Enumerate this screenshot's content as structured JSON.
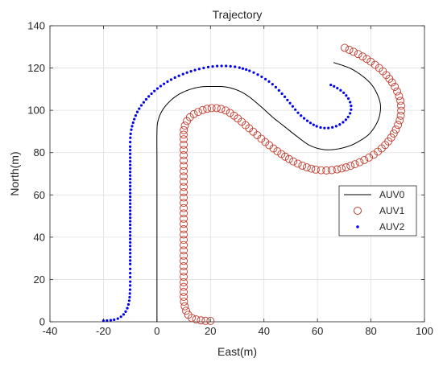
{
  "chart_data": {
    "type": "line",
    "title": "Trajectory",
    "xlabel": "East(m)",
    "ylabel": "North(m)",
    "xlim": [
      -40,
      100
    ],
    "ylim": [
      0,
      140
    ],
    "xticks": [
      -40,
      -20,
      0,
      20,
      40,
      60,
      80,
      100
    ],
    "yticks": [
      0,
      20,
      40,
      60,
      80,
      100,
      120,
      140
    ],
    "grid": true,
    "legend_position": "right",
    "series": [
      {
        "name": "AUV0",
        "style": "line",
        "color": "#000000",
        "points": [
          [
            0,
            0
          ],
          [
            0,
            15
          ],
          [
            0,
            30
          ],
          [
            0,
            45
          ],
          [
            0,
            60
          ],
          [
            0,
            75
          ],
          [
            0,
            90
          ],
          [
            0.4,
            95
          ],
          [
            1.8,
            99.5
          ],
          [
            4.2,
            103.5
          ],
          [
            7.5,
            107
          ],
          [
            11.5,
            109.5
          ],
          [
            16,
            111
          ],
          [
            21,
            111.3
          ],
          [
            26,
            111
          ],
          [
            30.5,
            109.3
          ],
          [
            34,
            106.8
          ],
          [
            37,
            103.8
          ],
          [
            40,
            100.5
          ],
          [
            43.5,
            96.5
          ],
          [
            47.5,
            92.5
          ],
          [
            52,
            88
          ],
          [
            57,
            83.5
          ],
          [
            62,
            81.5
          ],
          [
            67,
            81.6
          ],
          [
            72,
            83.2
          ],
          [
            76,
            85.7
          ],
          [
            79.5,
            89
          ],
          [
            82,
            93.5
          ],
          [
            83.3,
            98
          ],
          [
            83.5,
            103
          ],
          [
            82.2,
            108
          ],
          [
            80,
            112.5
          ],
          [
            76.5,
            116.5
          ],
          [
            72,
            120
          ],
          [
            66,
            122.6
          ]
        ]
      },
      {
        "name": "AUV1",
        "style": "circle",
        "color": "#c0392b",
        "points": [
          [
            20,
            0.4
          ],
          [
            17.5,
            0.5
          ],
          [
            15,
            1
          ],
          [
            13,
            1.8
          ],
          [
            11.7,
            3.3
          ],
          [
            10.9,
            5.2
          ],
          [
            10.4,
            7.3
          ],
          [
            10.1,
            9.5
          ],
          [
            10,
            12
          ],
          [
            10,
            15
          ],
          [
            10,
            20
          ],
          [
            10,
            25
          ],
          [
            10,
            30
          ],
          [
            10,
            35
          ],
          [
            10,
            40
          ],
          [
            10,
            45
          ],
          [
            10,
            50
          ],
          [
            10,
            55
          ],
          [
            10,
            60
          ],
          [
            10,
            65
          ],
          [
            10,
            70
          ],
          [
            10,
            75
          ],
          [
            10,
            80
          ],
          [
            10,
            85
          ],
          [
            10,
            90
          ],
          [
            10.5,
            93
          ],
          [
            11.5,
            95.5
          ],
          [
            13,
            97.5
          ],
          [
            15,
            99
          ],
          [
            17.5,
            100.3
          ],
          [
            20,
            101
          ],
          [
            22.5,
            101
          ],
          [
            25,
            100.3
          ],
          [
            27,
            99
          ],
          [
            29,
            97.3
          ],
          [
            31.5,
            94.8
          ],
          [
            34,
            92
          ],
          [
            37,
            88.8
          ],
          [
            40,
            85.5
          ],
          [
            43,
            82.5
          ],
          [
            46.5,
            79.3
          ],
          [
            50,
            76.5
          ],
          [
            54,
            74
          ],
          [
            58,
            72.3
          ],
          [
            62,
            71.6
          ],
          [
            66,
            71.8
          ],
          [
            70,
            72.8
          ],
          [
            74,
            74.5
          ],
          [
            77.5,
            76.5
          ],
          [
            81,
            79
          ],
          [
            84,
            82
          ],
          [
            86.5,
            85.3
          ],
          [
            88.5,
            89
          ],
          [
            90,
            92.8
          ],
          [
            91,
            96.5
          ],
          [
            91.3,
            100.5
          ],
          [
            91,
            104.5
          ],
          [
            90,
            108.3
          ],
          [
            88.5,
            112
          ],
          [
            86.5,
            115.5
          ],
          [
            84,
            119
          ],
          [
            81,
            122
          ],
          [
            77.5,
            125
          ],
          [
            73.5,
            127.7
          ],
          [
            69,
            130.2
          ]
        ]
      },
      {
        "name": "AUV2",
        "style": "dot",
        "color": "#0000ee",
        "points": [
          [
            -20,
            0.5
          ],
          [
            -17.5,
            0.7
          ],
          [
            -15,
            1.3
          ],
          [
            -13,
            2.8
          ],
          [
            -11.6,
            5
          ],
          [
            -10.8,
            7.5
          ],
          [
            -10.3,
            10.5
          ],
          [
            -10.1,
            14
          ],
          [
            -10,
            18
          ],
          [
            -10,
            25
          ],
          [
            -10,
            35
          ],
          [
            -10,
            45
          ],
          [
            -10,
            55
          ],
          [
            -10,
            65
          ],
          [
            -10,
            75
          ],
          [
            -10,
            85
          ],
          [
            -9.7,
            90
          ],
          [
            -8.7,
            95
          ],
          [
            -7,
            100
          ],
          [
            -4.5,
            104.5
          ],
          [
            -1.5,
            108.5
          ],
          [
            2,
            112
          ],
          [
            6,
            115
          ],
          [
            10.5,
            117.5
          ],
          [
            15,
            119.3
          ],
          [
            20,
            120.6
          ],
          [
            25,
            121
          ],
          [
            30,
            120.4
          ],
          [
            35,
            118.5
          ],
          [
            39.5,
            115.6
          ],
          [
            43.5,
            112
          ],
          [
            47,
            107.5
          ],
          [
            50,
            103
          ],
          [
            53,
            98.5
          ],
          [
            56.5,
            94.8
          ],
          [
            60,
            92.3
          ],
          [
            63.5,
            91.6
          ],
          [
            67,
            92.5
          ],
          [
            70,
            94.8
          ],
          [
            72,
            98
          ],
          [
            72.6,
            101.5
          ],
          [
            71.8,
            105
          ],
          [
            69.8,
            108.3
          ],
          [
            67,
            110.8
          ],
          [
            65,
            112
          ]
        ]
      }
    ]
  }
}
